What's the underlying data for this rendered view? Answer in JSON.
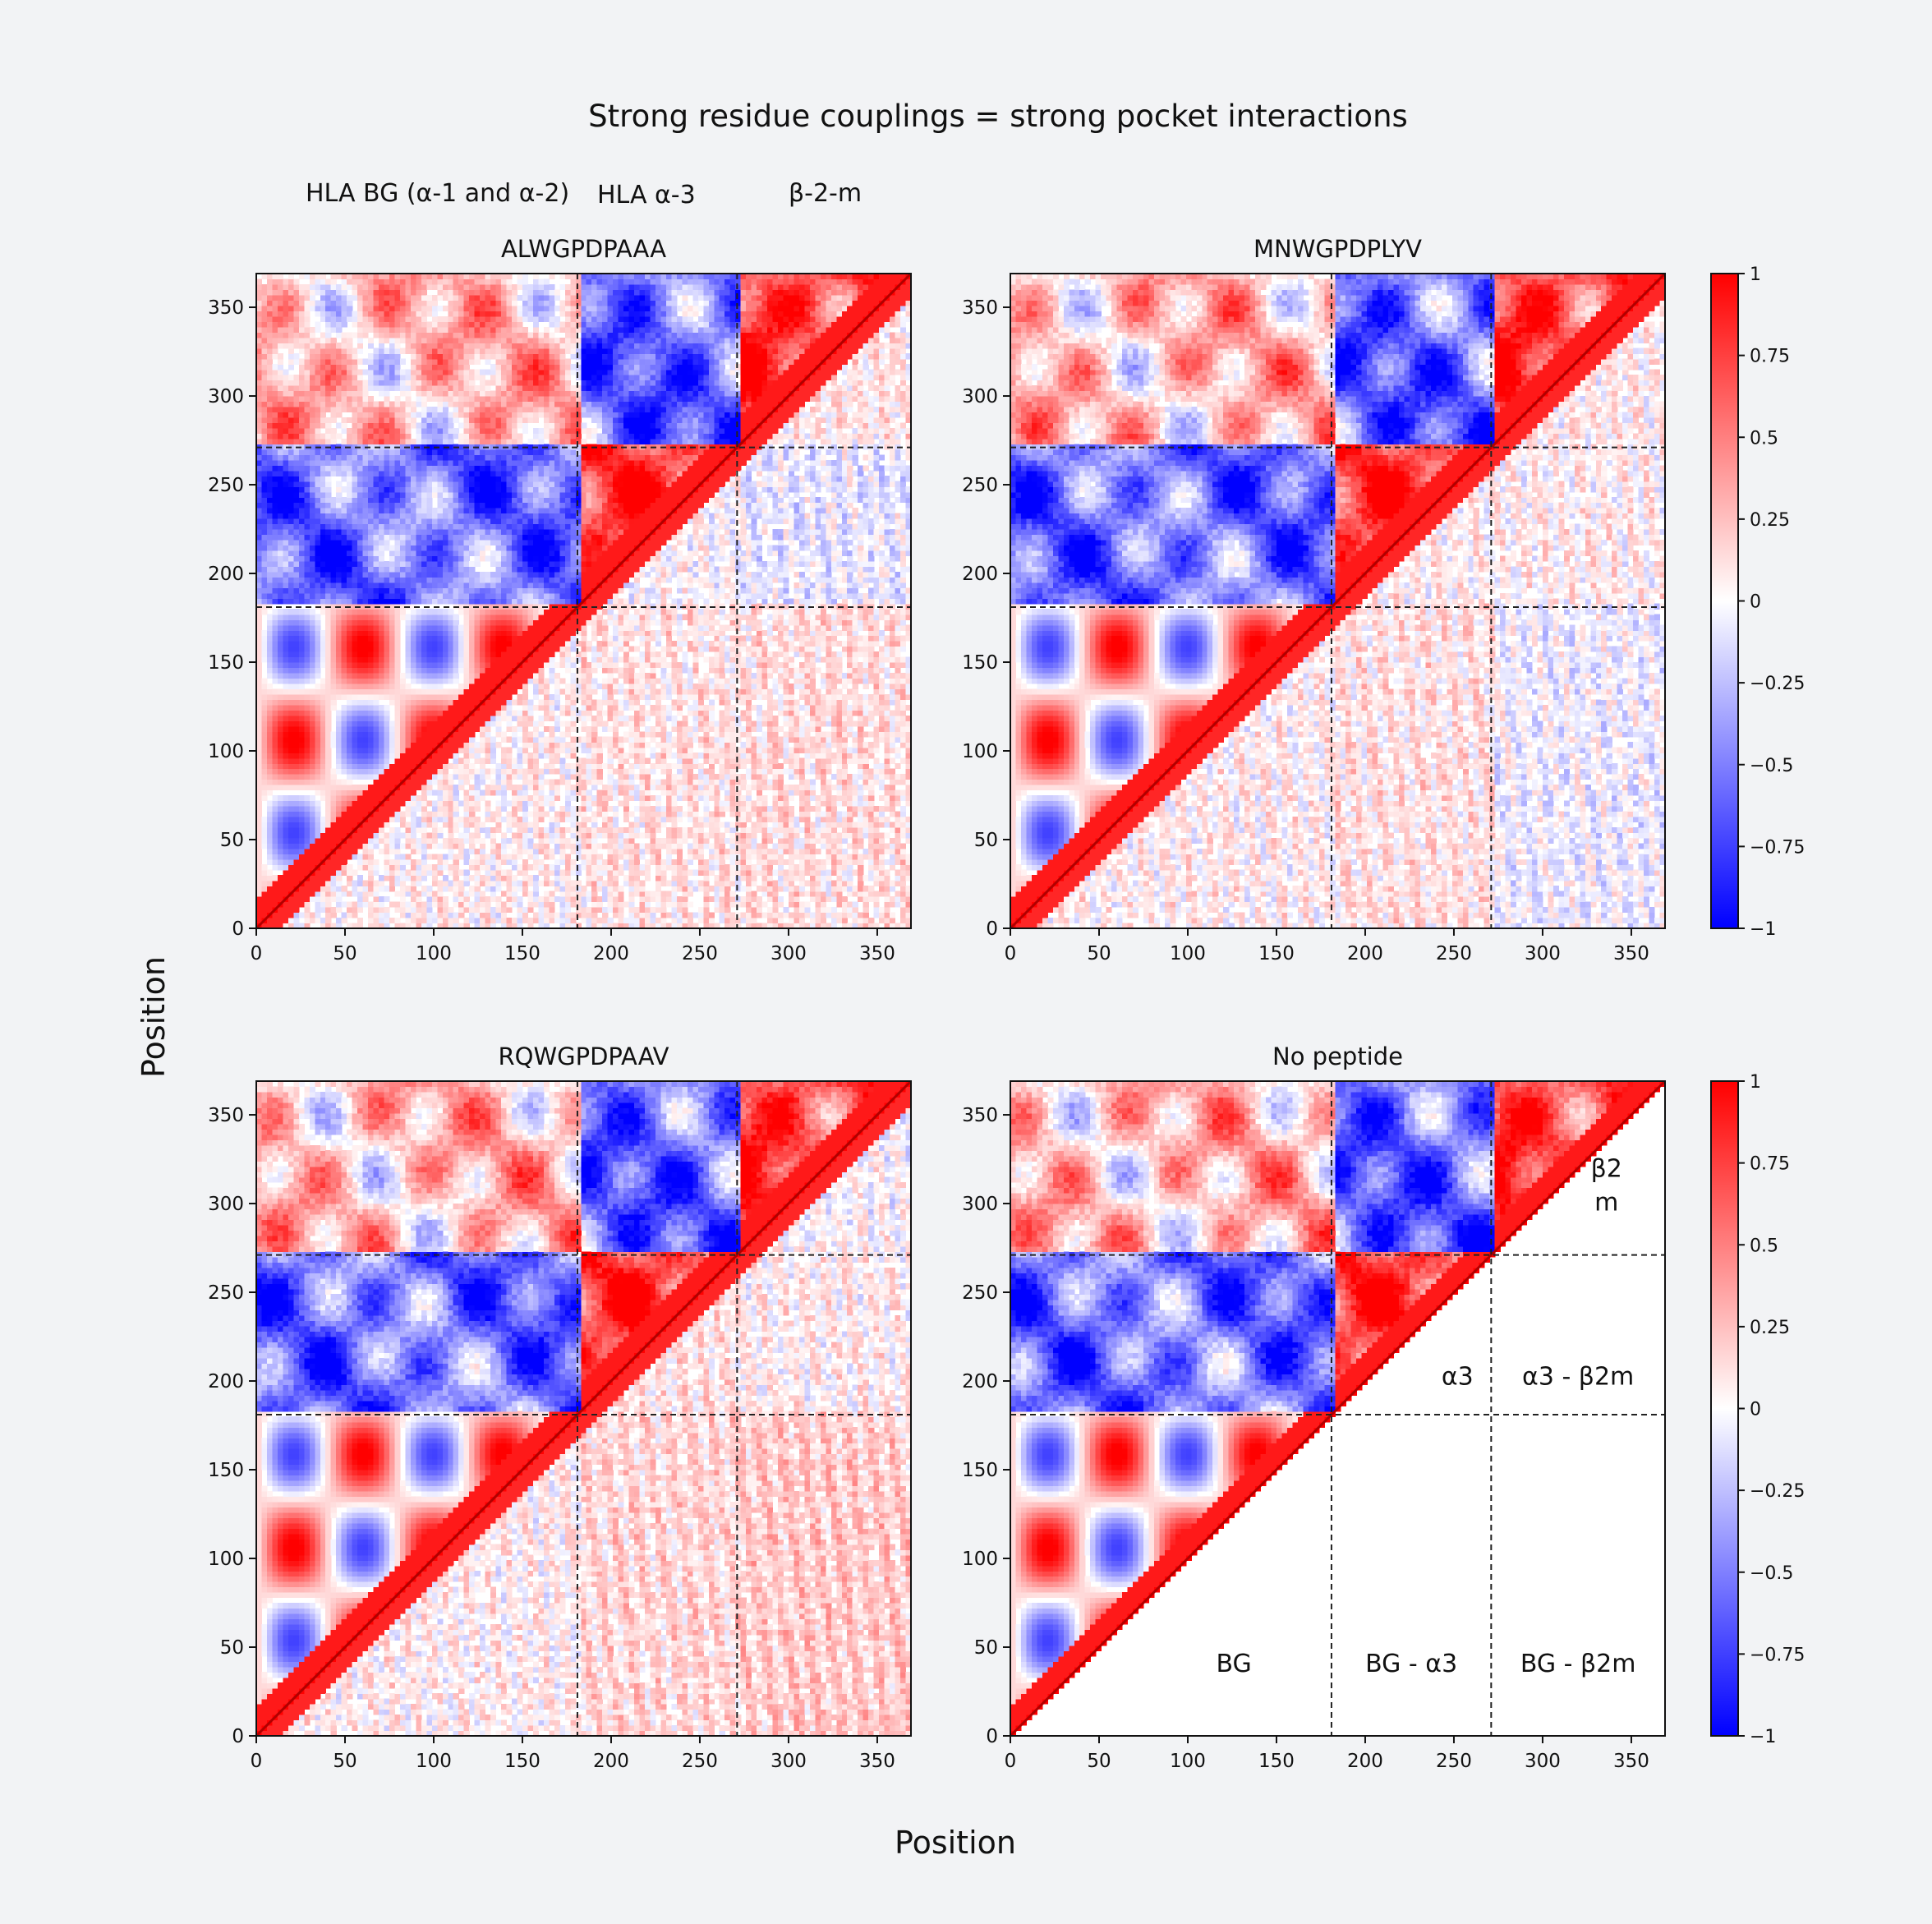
{
  "figure": {
    "title": "Strong residue couplings = strong pocket interactions",
    "xlabel": "Position",
    "ylabel": "Position",
    "domain_headers": [
      "HLA BG (α-1 and α-2)",
      "HLA α-3",
      "β-2-m"
    ]
  },
  "colorbar": {
    "colormap": "bwr",
    "range": [
      -1,
      1
    ],
    "ticks": [
      1,
      0.75,
      0.5,
      0.25,
      0,
      -0.25,
      -0.5,
      -0.75,
      -1
    ],
    "tick_labels": [
      "1",
      "0.75",
      "0.5",
      "0.25",
      "0",
      "−0.25",
      "−0.5",
      "−0.75",
      "−1"
    ],
    "colors": {
      "neg": "#0000ff",
      "zero": "#ffffff",
      "pos": "#ff0000"
    }
  },
  "chart_data": [
    {
      "type": "heatmap",
      "title": "ALWGPDPAAA",
      "xlabel": "",
      "ylabel": "",
      "xlim": [
        0,
        369
      ],
      "ylim": [
        0,
        369
      ],
      "xticks": [
        0,
        50,
        100,
        150,
        200,
        250,
        300,
        350
      ],
      "yticks": [
        0,
        50,
        100,
        150,
        200,
        250,
        300,
        350
      ],
      "domain_boundaries": [
        181,
        271
      ],
      "upper_triangle_blocks": {
        "BG": 0.3,
        "a3": 0.7,
        "b2m": 0.8,
        "a3_vs_BG": -0.55,
        "b2m_vs_BG": 0.25,
        "b2m_vs_a3": -0.6
      },
      "lower_triangle_blocks": {
        "BG": 0.05,
        "BG_vs_a3": 0.1,
        "BG_vs_b2m": 0.12,
        "a3": 0.0,
        "a3_vs_b2m": -0.08,
        "b2m": 0.08
      }
    },
    {
      "type": "heatmap",
      "title": "MNWGPDPLYV",
      "xlabel": "",
      "ylabel": "",
      "xlim": [
        0,
        369
      ],
      "ylim": [
        0,
        369
      ],
      "xticks": [
        0,
        50,
        100,
        150,
        200,
        250,
        300,
        350
      ],
      "yticks": [
        0,
        50,
        100,
        150,
        200,
        250,
        300,
        350
      ],
      "domain_boundaries": [
        181,
        271
      ],
      "upper_triangle_blocks": {
        "BG": 0.3,
        "a3": 0.7,
        "b2m": 0.8,
        "a3_vs_BG": -0.55,
        "b2m_vs_BG": 0.25,
        "b2m_vs_a3": -0.6
      },
      "lower_triangle_blocks": {
        "BG": 0.05,
        "BG_vs_a3": 0.1,
        "BG_vs_b2m": -0.05,
        "a3": 0.05,
        "a3_vs_b2m": 0.05,
        "b2m": 0.05
      }
    },
    {
      "type": "heatmap",
      "title": "RQWGPDPAAV",
      "xlabel": "",
      "ylabel": "",
      "xlim": [
        0,
        369
      ],
      "ylim": [
        0,
        369
      ],
      "xticks": [
        0,
        50,
        100,
        150,
        200,
        250,
        300,
        350
      ],
      "yticks": [
        0,
        50,
        100,
        150,
        200,
        250,
        300,
        350
      ],
      "domain_boundaries": [
        181,
        271
      ],
      "upper_triangle_blocks": {
        "BG": 0.3,
        "a3": 0.7,
        "b2m": 0.8,
        "a3_vs_BG": -0.55,
        "b2m_vs_BG": 0.25,
        "b2m_vs_a3": -0.6
      },
      "lower_triangle_blocks": {
        "BG": 0.05,
        "BG_vs_a3": 0.15,
        "BG_vs_b2m": 0.2,
        "a3": 0.1,
        "a3_vs_b2m": 0.05,
        "b2m": 0.0
      }
    },
    {
      "type": "heatmap",
      "title": "No peptide",
      "xlabel": "",
      "ylabel": "",
      "xlim": [
        0,
        369
      ],
      "ylim": [
        0,
        369
      ],
      "xticks": [
        0,
        50,
        100,
        150,
        200,
        250,
        300,
        350
      ],
      "yticks": [
        0,
        50,
        100,
        150,
        200,
        250,
        300,
        350
      ],
      "domain_boundaries": [
        181,
        271
      ],
      "upper_triangle_blocks": {
        "BG": 0.3,
        "a3": 0.7,
        "b2m": 0.8,
        "a3_vs_BG": -0.55,
        "b2m_vs_BG": 0.25,
        "b2m_vs_a3": -0.6
      },
      "lower_triangle_blocks": null,
      "annotations": [
        "BG",
        "BG - α3",
        "BG - β2m",
        "α3",
        "α3 - β2m",
        "β2",
        "m"
      ]
    }
  ]
}
